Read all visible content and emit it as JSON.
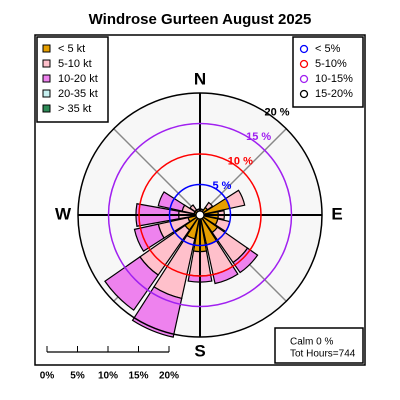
{
  "chart_data": {
    "type": "windrose",
    "title": "Windrose  Gurteen August 2025",
    "compass": [
      "N",
      "E",
      "S",
      "W"
    ],
    "series": [
      {
        "name": "< 5  kt",
        "color": "#e69f00",
        "values": [
          0.5,
          0.6,
          1.5,
          5,
          3,
          3,
          3.5,
          5,
          6,
          4,
          3,
          2,
          1.5,
          1,
          1,
          0.5
        ]
      },
      {
        "name": "5-10 kt",
        "color": "#ffc0cb",
        "values": [
          0.5,
          0.4,
          1,
          2.5,
          1,
          2,
          6,
          5,
          4,
          10,
          9,
          5,
          2,
          2,
          1,
          0.5
        ]
      },
      {
        "name": "10-20 kt",
        "color": "#ee82ee",
        "values": [
          0,
          0,
          0,
          0,
          0,
          0,
          2,
          1.5,
          1,
          6.5,
          7,
          4,
          7,
          4,
          0,
          0
        ]
      },
      {
        "name": "20-35 kt",
        "color": "#c6f0f0",
        "values": [
          0,
          0,
          0,
          0,
          0,
          0,
          0,
          0,
          0,
          0,
          0,
          0,
          0,
          0,
          0,
          0
        ]
      },
      {
        "name": "> 35 kt",
        "color": "#2e8b57",
        "values": [
          0,
          0,
          0,
          0,
          0,
          0,
          0,
          0,
          0,
          0,
          0,
          0,
          0,
          0,
          0,
          0
        ]
      }
    ],
    "ylim": [
      0,
      20
    ],
    "rings": [
      {
        "value": 5,
        "label": "5 %",
        "legend": "< 5%",
        "color": "#0000ff"
      },
      {
        "value": 10,
        "label": "10 %",
        "legend": "5-10%",
        "color": "#ff0000"
      },
      {
        "value": 15,
        "label": "15 %",
        "legend": "10-15%",
        "color": "#a020f0"
      },
      {
        "value": 20,
        "label": "20 %",
        "legend": "15-20%",
        "color": "#000000"
      }
    ],
    "scale_ticks": [
      {
        "value": 0,
        "label": "0%"
      },
      {
        "value": 5,
        "label": "5%"
      },
      {
        "value": 10,
        "label": "10%"
      },
      {
        "value": 15,
        "label": "15%"
      },
      {
        "value": 20,
        "label": "20%"
      }
    ],
    "calm": "Calm 0 %",
    "total": "Tot Hours=744"
  }
}
